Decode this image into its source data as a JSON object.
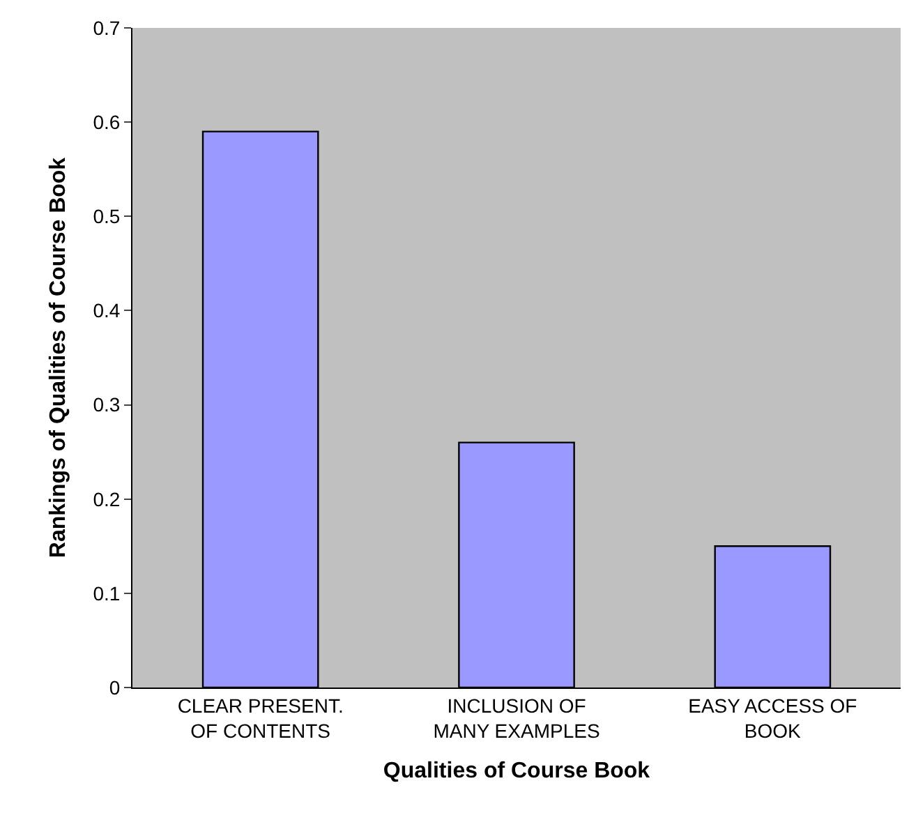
{
  "chart_data": {
    "type": "bar",
    "xlabel": "Qualities of Course Book",
    "ylabel": "Rankings of Qualities of Course Book",
    "categories": [
      "CLEAR PRESENT.\nOF CONTENTS",
      "INCLUSION OF\nMANY EXAMPLES",
      "EASY ACCESS OF\nBOOK"
    ],
    "values": [
      0.59,
      0.26,
      0.15
    ],
    "color": "#9999ff",
    "ylim": [
      0,
      0.7
    ],
    "yticks": [
      0,
      0.1,
      0.2,
      0.3,
      0.4,
      0.5,
      0.6,
      0.7
    ],
    "grid": false,
    "legend": false
  }
}
